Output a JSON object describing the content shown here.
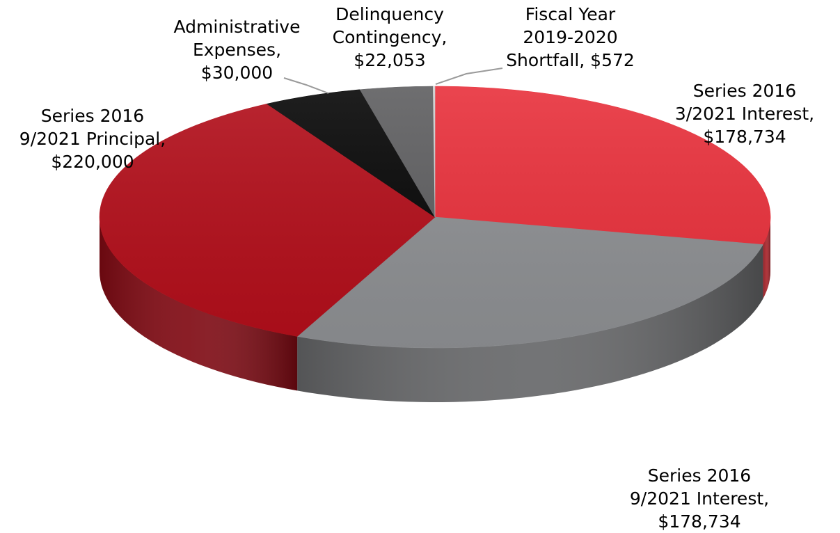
{
  "chart_data": {
    "type": "pie",
    "title": "",
    "series": [
      {
        "slices": [
          {
            "label": [
              "Series 2016",
              "3/2021 Interest,",
              "$178,734"
            ],
            "value": 178734,
            "color": "#e8303b"
          },
          {
            "label": [
              "Series 2016",
              "9/2021 Interest,",
              "$178,734"
            ],
            "value": 178734,
            "color": "#8d8f92"
          },
          {
            "label": [
              "Series 2016",
              "9/2021 Principal,",
              "$220,000"
            ],
            "value": 220000,
            "color": "#b20e1a"
          },
          {
            "label": [
              "Administrative",
              "Expenses,",
              "$30,000"
            ],
            "value": 30000,
            "color": "#060606"
          },
          {
            "label": [
              "Delinquency",
              "Contingency,",
              "$22,053"
            ],
            "value": 22053,
            "color": "#5e5e60"
          },
          {
            "label": [
              "Fiscal Year",
              "2019-2020",
              "Shortfall, $572"
            ],
            "value": 572,
            "color": "#cfcfcf"
          }
        ]
      }
    ],
    "style": "3d-pie",
    "legend": "none"
  }
}
